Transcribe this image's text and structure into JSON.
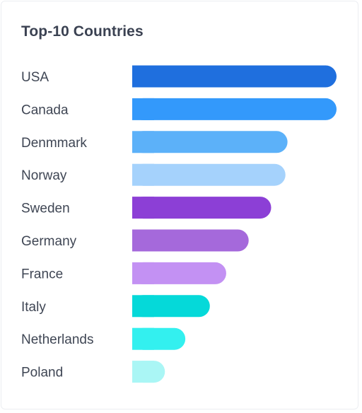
{
  "chart_data": {
    "type": "bar",
    "orientation": "horizontal",
    "title": "Top-10 Countries",
    "xlabel": "",
    "ylabel": "",
    "categories": [
      "USA",
      "Canada",
      "Denmmark",
      "Norway",
      "Sweden",
      "Germany",
      "France",
      "Italy",
      "Netherlands",
      "Poland"
    ],
    "values": [
      100,
      100,
      76,
      75,
      68,
      57,
      46,
      38,
      26,
      16
    ],
    "xlim": [
      0,
      100
    ],
    "grid": false,
    "legend": "none",
    "colors": [
      "#1f6fde",
      "#3399fb",
      "#5cb1f9",
      "#a5d2fc",
      "#8c3fd6",
      "#a569db",
      "#c391f3",
      "#05d9d9",
      "#33f0ef",
      "#aaf6f5"
    ]
  }
}
